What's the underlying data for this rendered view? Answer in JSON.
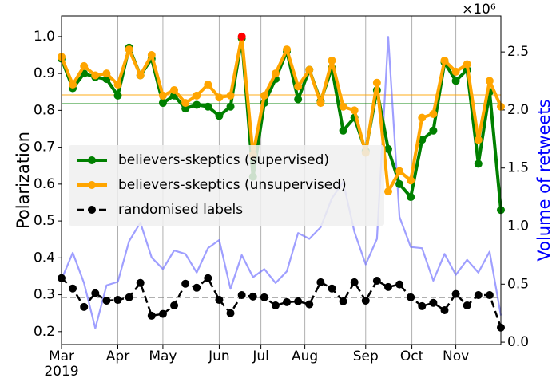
{
  "chart_data": {
    "type": "line",
    "ylabel": "Polarization",
    "y2label": "Volume of retweets",
    "y2_offset_label": "×10⁶",
    "x_year_label": "2019",
    "x": [
      0,
      1,
      2,
      3,
      4,
      5,
      6,
      7,
      8,
      9,
      10,
      11,
      12,
      13,
      14,
      15,
      16,
      17,
      18,
      19,
      20,
      21,
      22,
      23,
      24,
      25,
      26,
      27,
      28,
      29,
      30,
      31,
      32,
      33,
      34,
      35,
      36,
      37,
      38,
      39
    ],
    "xlim": [
      0,
      39
    ],
    "xticks": [
      {
        "value": 0,
        "label": "Mar"
      },
      {
        "value": 5,
        "label": "Apr"
      },
      {
        "value": 9,
        "label": "May"
      },
      {
        "value": 14,
        "label": "Jun"
      },
      {
        "value": 17.7,
        "label": "Jul"
      },
      {
        "value": 21.6,
        "label": "Aug"
      },
      {
        "value": 27,
        "label": "Sep"
      },
      {
        "value": 31.1,
        "label": "Oct"
      },
      {
        "value": 35,
        "label": "Nov"
      }
    ],
    "ylim": [
      0.165,
      1.056
    ],
    "yticks": [
      0.2,
      0.3,
      0.4,
      0.5,
      0.6,
      0.7,
      0.8,
      0.9,
      {
        "value": 1,
        "label": "1.0"
      }
    ],
    "y2lim": [
      -0.02,
      2.81
    ],
    "y2ticks": [
      {
        "value": 0,
        "label": "0.0"
      },
      0.5,
      {
        "value": 1,
        "label": "1.0"
      },
      1.5,
      {
        "value": 2,
        "label": "2.0"
      },
      2.5
    ],
    "grid": "x",
    "legend": "center left",
    "highlight_color": "#ff0000",
    "series": [
      {
        "name": "believers-skeptics (supervised)",
        "color": "#008000",
        "marker": true,
        "dashed": false,
        "mean": 0.818,
        "values": [
          0.94,
          0.86,
          0.9,
          0.89,
          0.885,
          0.84,
          0.97,
          0.895,
          0.94,
          0.82,
          0.84,
          0.805,
          0.815,
          0.81,
          0.785,
          0.81,
          0.995,
          0.62,
          0.82,
          0.885,
          0.96,
          0.83,
          0.91,
          0.825,
          0.915,
          0.745,
          0.78,
          0.69,
          0.855,
          0.695,
          0.6,
          0.565,
          0.72,
          0.745,
          0.93,
          0.88,
          0.91,
          0.655,
          0.85,
          0.53
        ]
      },
      {
        "name": "believers-skeptics (unsupervised)",
        "color": "#ffa500",
        "marker": true,
        "dashed": false,
        "mean": 0.842,
        "highlight_index": 16,
        "values": [
          0.945,
          0.87,
          0.92,
          0.895,
          0.9,
          0.87,
          0.965,
          0.895,
          0.95,
          0.84,
          0.855,
          0.82,
          0.84,
          0.87,
          0.835,
          0.84,
          1.0,
          0.68,
          0.84,
          0.9,
          0.965,
          0.865,
          0.91,
          0.82,
          0.935,
          0.81,
          0.8,
          0.685,
          0.875,
          0.58,
          0.635,
          0.61,
          0.78,
          0.79,
          0.935,
          0.905,
          0.925,
          0.72,
          0.88,
          0.81
        ]
      },
      {
        "name": "randomised labels",
        "color": "#000000",
        "marker": true,
        "dashed": true,
        "mean": 0.293,
        "mean_color": "#808080",
        "values": [
          0.345,
          0.317,
          0.267,
          0.304,
          0.284,
          0.286,
          0.293,
          0.332,
          0.243,
          0.248,
          0.271,
          0.33,
          0.319,
          0.345,
          0.286,
          0.25,
          0.299,
          0.295,
          0.293,
          0.271,
          0.28,
          0.282,
          0.274,
          0.334,
          0.317,
          0.282,
          0.334,
          0.284,
          0.338,
          0.321,
          0.328,
          0.293,
          0.269,
          0.278,
          0.258,
          0.302,
          0.271,
          0.299,
          0.299,
          0.211
        ]
      },
      {
        "color": "#6b6bff",
        "axis": "y2",
        "marker": false,
        "dashed": false,
        "values": [
          0.54,
          0.77,
          0.51,
          0.12,
          0.49,
          0.52,
          0.87,
          1.03,
          0.73,
          0.63,
          0.79,
          0.76,
          0.6,
          0.81,
          0.88,
          0.46,
          0.75,
          0.56,
          0.63,
          0.51,
          0.61,
          0.94,
          0.89,
          0.99,
          1.24,
          1.38,
          0.95,
          0.67,
          0.89,
          2.63,
          1.08,
          0.82,
          0.81,
          0.53,
          0.76,
          0.58,
          0.71,
          0.6,
          0.78,
          0.23
        ]
      }
    ]
  }
}
